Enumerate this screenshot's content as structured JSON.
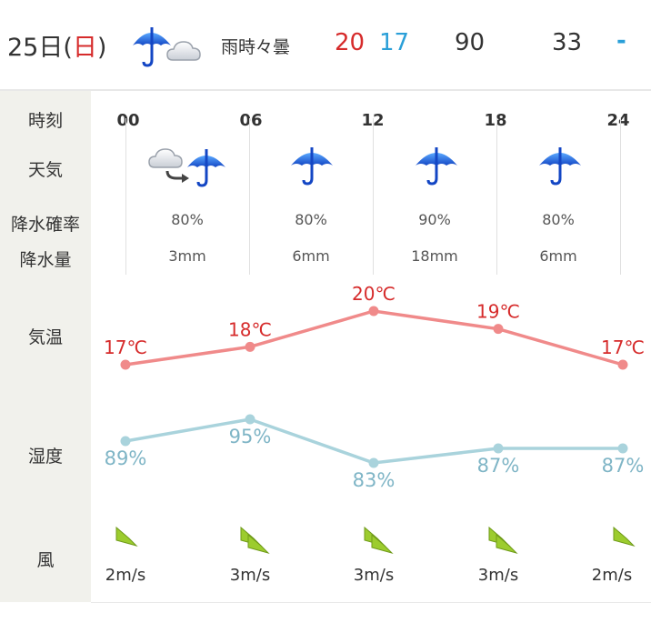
{
  "summary": {
    "date_prefix": "25日(",
    "day_of_week": "日",
    "date_suffix": ")",
    "weather_icon": "rain-then-cloudy-icon",
    "weather_text": "雨時々曇",
    "temp_high": "20",
    "temp_low": "17",
    "precip_prob": "90",
    "precip_amount": "33",
    "wind": "-"
  },
  "row_labels": {
    "time": "時刻",
    "weather": "天気",
    "precip_prob": "降水確率",
    "precip_amount": "降水量",
    "temperature": "気温",
    "humidity": "湿度",
    "wind": "風"
  },
  "hours": [
    "00",
    "06",
    "12",
    "18",
    "24"
  ],
  "blocks": [
    {
      "icon": "cloudy-then-rain-icon",
      "precip_prob": "80%",
      "precip_amount": "3mm"
    },
    {
      "icon": "umbrella-icon",
      "precip_prob": "80%",
      "precip_amount": "6mm"
    },
    {
      "icon": "umbrella-icon",
      "precip_prob": "90%",
      "precip_amount": "18mm"
    },
    {
      "icon": "umbrella-icon",
      "precip_prob": "80%",
      "precip_amount": "6mm"
    }
  ],
  "chart_data": {
    "type": "line",
    "x": [
      "00",
      "06",
      "12",
      "18",
      "24"
    ],
    "series": [
      {
        "name": "気温",
        "values": [
          17,
          18,
          20,
          19,
          17
        ],
        "labels": [
          "17℃",
          "18℃",
          "20℃",
          "19℃",
          "17℃"
        ],
        "color": "#f08a8a",
        "label_color": "#d62b2b"
      },
      {
        "name": "湿度",
        "values": [
          89,
          95,
          83,
          87,
          87
        ],
        "labels": [
          "89%",
          "95%",
          "83%",
          "87%",
          "87%"
        ],
        "color": "#a9d3dc",
        "label_color": "#7fb5c6"
      }
    ]
  },
  "wind": [
    {
      "icon": "wind-direction-arrow-icon",
      "level": 1,
      "speed": "2m/s"
    },
    {
      "icon": "wind-direction-arrow-icon",
      "level": 2,
      "speed": "3m/s"
    },
    {
      "icon": "wind-direction-arrow-icon",
      "level": 2,
      "speed": "3m/s"
    },
    {
      "icon": "wind-direction-arrow-icon",
      "level": 2,
      "speed": "3m/s"
    },
    {
      "icon": "wind-direction-arrow-icon",
      "level": 1,
      "speed": "2m/s"
    }
  ],
  "colors": {
    "holiday_red": "#d62b2b",
    "low_temp_blue": "#2a9fd8",
    "umbrella_blue": "#1f6fd9",
    "wind_green": "#9ccc2e",
    "label_bg": "#f1f1ec"
  }
}
